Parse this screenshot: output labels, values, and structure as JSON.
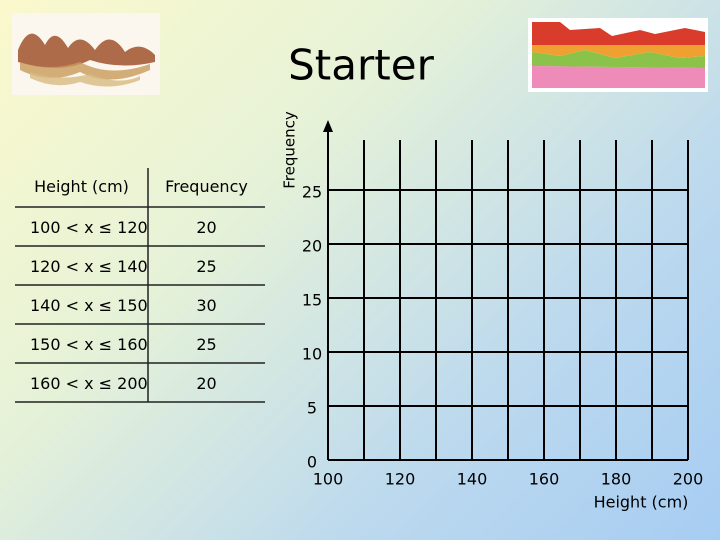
{
  "title": "Starter",
  "table": {
    "header": [
      "Height (cm)",
      "Frequency"
    ],
    "rows": [
      [
        "100 < x ≤ 120",
        20
      ],
      [
        "120 < x ≤ 140",
        25
      ],
      [
        "140 < x ≤ 150",
        30
      ],
      [
        "150 < x ≤ 160",
        25
      ],
      [
        "160 < x ≤ 200",
        20
      ]
    ]
  },
  "graph": {
    "y_label": "Frequency",
    "x_label": "Height (cm)",
    "yticks": [
      0,
      5,
      10,
      15,
      20,
      25
    ],
    "xticks": [
      100,
      120,
      140,
      160,
      180,
      200
    ]
  }
}
